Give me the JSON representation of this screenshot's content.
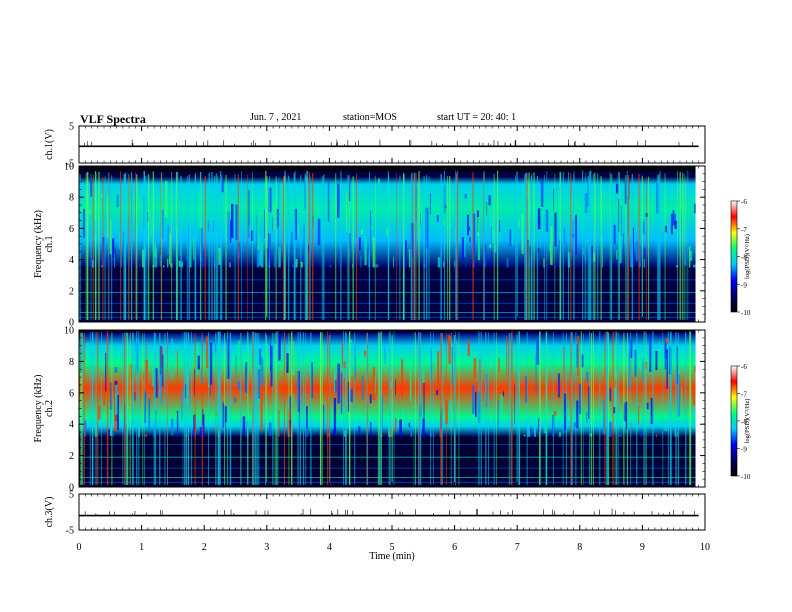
{
  "header": {
    "title": "VLF Spectra",
    "date": "Jun. 7 , 2021",
    "station": "station=MOS",
    "start_ut": "start UT = 20: 40: 1"
  },
  "chart_data": {
    "type": "heatmap",
    "x": {
      "label": "Time (min)",
      "range": [
        0,
        10
      ],
      "ticks": [
        "0",
        "1",
        "2",
        "3",
        "4",
        "5",
        "6",
        "7",
        "8",
        "9",
        "10"
      ],
      "data_end": 9.85
    },
    "panels": [
      {
        "name": "ch1-waveform",
        "type": "line",
        "ylabel": "ch.1(V)",
        "yticks": [
          "5",
          "-5"
        ],
        "ylim": [
          -5,
          5
        ],
        "level": -0.5
      },
      {
        "name": "ch1-spectrogram",
        "type": "heatmap",
        "ylabel": "ch.1\nFrequency (kHz)",
        "yticks": [
          "0",
          "2",
          "4",
          "6",
          "8",
          "10"
        ],
        "ylim": [
          0,
          10
        ],
        "emission_band_khz": [
          3.5,
          9.3
        ],
        "peak_log_psd": -7.6,
        "background_log_psd": -9.6,
        "sferics": "dense vertical broadband impulses",
        "colorbar": {
          "label": "log(PSD)(V²/Hz)",
          "ticks": [
            "-6",
            "-7",
            "-8",
            "-9",
            "-10"
          ],
          "range": [
            -10,
            -6
          ]
        }
      },
      {
        "name": "ch2-spectrogram",
        "type": "heatmap",
        "ylabel": "ch.2\nFrequency (kHz)",
        "yticks": [
          "0",
          "2",
          "4",
          "6",
          "8",
          "10"
        ],
        "ylim": [
          0,
          10
        ],
        "emission_band_khz": [
          3.2,
          9.8
        ],
        "band_center_khz": 6.3,
        "peak_log_psd": -6.7,
        "background_log_psd": -9.7,
        "sferics": "dense vertical broadband impulses",
        "colorbar": {
          "label": "log(PSD)(V²/Hz)",
          "ticks": [
            "-6",
            "-7",
            "-8",
            "-9",
            "-10"
          ],
          "range": [
            -10,
            -6
          ]
        }
      },
      {
        "name": "ch3-waveform",
        "type": "line",
        "ylabel": "ch.3(V)",
        "yticks": [
          "5",
          "-5"
        ],
        "ylim": [
          -5,
          5
        ],
        "level": -1.0
      }
    ],
    "colormap": [
      "#000000",
      "#000060",
      "#0000ff",
      "#00c8ff",
      "#00ff7f",
      "#ffff00",
      "#ff0000",
      "#ffffff"
    ]
  }
}
